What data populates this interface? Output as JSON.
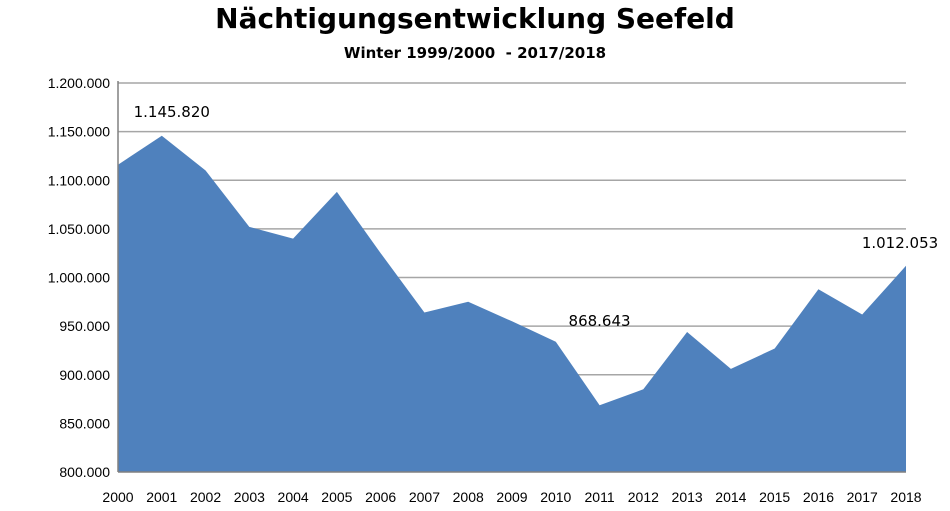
{
  "chart_data": {
    "type": "area",
    "title": "Nächtigungsentwicklung Seefeld",
    "subtitle": "Winter 1999/2000  - 2017/2018",
    "xlabel": "",
    "ylabel": "",
    "ylim": [
      800000,
      1200000
    ],
    "yticks": [
      "800.000",
      "850.000",
      "900.000",
      "950.000",
      "1.000.000",
      "1.050.000",
      "1.100.000",
      "1.150.000",
      "1.200.000"
    ],
    "grid": true,
    "legend": "none",
    "categories": [
      "2000",
      "2001",
      "2002",
      "2003",
      "2004",
      "2005",
      "2006",
      "2007",
      "2008",
      "2009",
      "2010",
      "2011",
      "2012",
      "2013",
      "2014",
      "2015",
      "2016",
      "2017",
      "2018"
    ],
    "values": [
      1116000,
      1145820,
      1110000,
      1052000,
      1040000,
      1088000,
      1025000,
      964000,
      975000,
      955000,
      934000,
      868643,
      885000,
      944000,
      906000,
      927000,
      988000,
      962000,
      1012053
    ],
    "data_labels": [
      {
        "index": 1,
        "text": "1.145.820"
      },
      {
        "index": 11,
        "text": "868.643"
      },
      {
        "index": 18,
        "text": "1.012.053"
      }
    ],
    "fill_color": "#4f81bd",
    "grid_color": "#a6a6a6"
  }
}
